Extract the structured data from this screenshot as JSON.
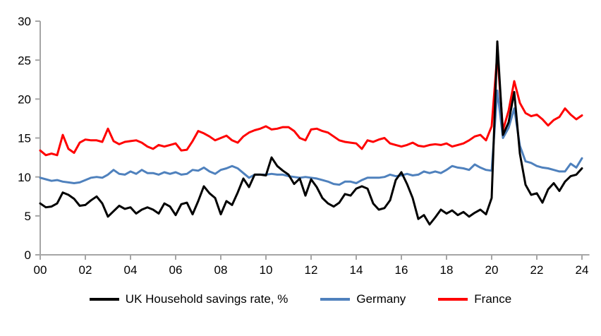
{
  "chart_data": {
    "type": "line",
    "title": "",
    "xlabel": "",
    "ylabel": "",
    "x_start_year": 2000,
    "points_per_year": 4,
    "xlim": [
      2000,
      2024.3
    ],
    "ylim": [
      0,
      30
    ],
    "y_ticks": [
      0,
      5,
      10,
      15,
      20,
      25,
      30
    ],
    "x_ticks": [
      {
        "year": 2000,
        "label": "00"
      },
      {
        "year": 2002,
        "label": "02"
      },
      {
        "year": 2004,
        "label": "04"
      },
      {
        "year": 2006,
        "label": "06"
      },
      {
        "year": 2008,
        "label": "08"
      },
      {
        "year": 2010,
        "label": "10"
      },
      {
        "year": 2012,
        "label": "12"
      },
      {
        "year": 2014,
        "label": "14"
      },
      {
        "year": 2016,
        "label": "16"
      },
      {
        "year": 2018,
        "label": "18"
      },
      {
        "year": 2020,
        "label": "20"
      },
      {
        "year": 2022,
        "label": "22"
      },
      {
        "year": 2024,
        "label": "24"
      }
    ],
    "grid": false,
    "legend_position": "bottom",
    "axis_color": "#a6a6a6",
    "series": [
      {
        "id": "uk-household-savings-rate",
        "name": "UK Household savings rate, %",
        "color": "#000000",
        "values": [
          6.6,
          6.1,
          6.2,
          6.6,
          8.0,
          7.7,
          7.2,
          6.3,
          6.4,
          7.0,
          7.5,
          6.6,
          4.9,
          5.6,
          6.3,
          5.9,
          6.1,
          5.3,
          5.8,
          6.1,
          5.8,
          5.3,
          6.6,
          6.2,
          5.1,
          6.5,
          6.7,
          5.2,
          6.9,
          8.8,
          7.9,
          7.3,
          5.2,
          6.9,
          6.4,
          8.0,
          9.8,
          8.7,
          10.3,
          10.3,
          10.2,
          12.5,
          11.4,
          10.8,
          10.3,
          9.1,
          9.8,
          7.6,
          9.7,
          8.7,
          7.3,
          6.6,
          6.2,
          6.7,
          7.8,
          7.6,
          8.5,
          8.8,
          8.5,
          6.6,
          5.8,
          6.0,
          7.0,
          9.6,
          10.6,
          9.1,
          7.3,
          4.6,
          5.1,
          3.9,
          4.8,
          5.8,
          5.3,
          5.7,
          5.1,
          5.5,
          4.9,
          5.4,
          5.8,
          5.2,
          7.3,
          27.4,
          15.4,
          17.0,
          20.9,
          13.0,
          9.0,
          7.7,
          7.9,
          6.7,
          8.4,
          9.2,
          8.2,
          9.4,
          10.1,
          10.3,
          11.1
        ]
      },
      {
        "id": "germany",
        "name": "Germany",
        "color": "#4f81bd",
        "values": [
          9.9,
          9.7,
          9.5,
          9.6,
          9.4,
          9.3,
          9.2,
          9.3,
          9.6,
          9.9,
          10.0,
          9.9,
          10.3,
          10.9,
          10.4,
          10.3,
          10.7,
          10.4,
          10.9,
          10.5,
          10.5,
          10.3,
          10.6,
          10.4,
          10.6,
          10.3,
          10.4,
          10.9,
          10.8,
          11.2,
          10.7,
          10.4,
          10.9,
          11.1,
          11.4,
          11.1,
          10.5,
          9.9,
          10.3,
          10.3,
          10.3,
          10.4,
          10.3,
          10.3,
          10.1,
          10.0,
          9.9,
          10.0,
          9.9,
          9.8,
          9.6,
          9.4,
          9.1,
          9.0,
          9.4,
          9.4,
          9.2,
          9.6,
          9.9,
          9.9,
          9.9,
          10.0,
          10.3,
          10.1,
          10.2,
          10.4,
          10.2,
          10.3,
          10.7,
          10.5,
          10.7,
          10.5,
          10.9,
          11.4,
          11.2,
          11.1,
          10.9,
          11.6,
          11.2,
          10.9,
          10.8,
          21.1,
          15.0,
          16.3,
          18.8,
          14.0,
          12.0,
          11.8,
          11.4,
          11.2,
          11.1,
          10.9,
          10.7,
          10.7,
          11.7,
          11.2,
          12.4
        ]
      },
      {
        "id": "france",
        "name": "France",
        "color": "#ff0000",
        "values": [
          13.4,
          12.8,
          13.0,
          12.8,
          15.4,
          13.6,
          13.1,
          14.4,
          14.8,
          14.7,
          14.7,
          14.5,
          16.2,
          14.6,
          14.2,
          14.5,
          14.6,
          14.7,
          14.4,
          13.9,
          13.6,
          14.1,
          13.9,
          14.1,
          14.3,
          13.4,
          13.5,
          14.6,
          15.9,
          15.6,
          15.2,
          14.7,
          15.0,
          15.3,
          14.7,
          14.4,
          15.2,
          15.7,
          16.0,
          16.2,
          16.5,
          16.1,
          16.2,
          16.4,
          16.4,
          15.9,
          15.0,
          14.7,
          16.1,
          16.2,
          15.9,
          15.7,
          15.2,
          14.7,
          14.5,
          14.4,
          14.3,
          13.6,
          14.7,
          14.5,
          14.8,
          15.0,
          14.3,
          14.1,
          13.9,
          14.1,
          14.4,
          14.0,
          13.9,
          14.1,
          14.2,
          14.1,
          14.3,
          13.9,
          14.1,
          14.3,
          14.7,
          15.2,
          15.4,
          14.7,
          16.5,
          25.8,
          16.0,
          18.5,
          22.3,
          19.5,
          18.2,
          17.8,
          18.0,
          17.4,
          16.6,
          17.3,
          17.7,
          18.8,
          18.0,
          17.4,
          17.9
        ]
      }
    ]
  },
  "legend": {
    "items": [
      {
        "label": "UK Household savings rate, %",
        "color": "#000000"
      },
      {
        "label": "Germany",
        "color": "#4f81bd"
      },
      {
        "label": "France",
        "color": "#ff0000"
      }
    ]
  }
}
